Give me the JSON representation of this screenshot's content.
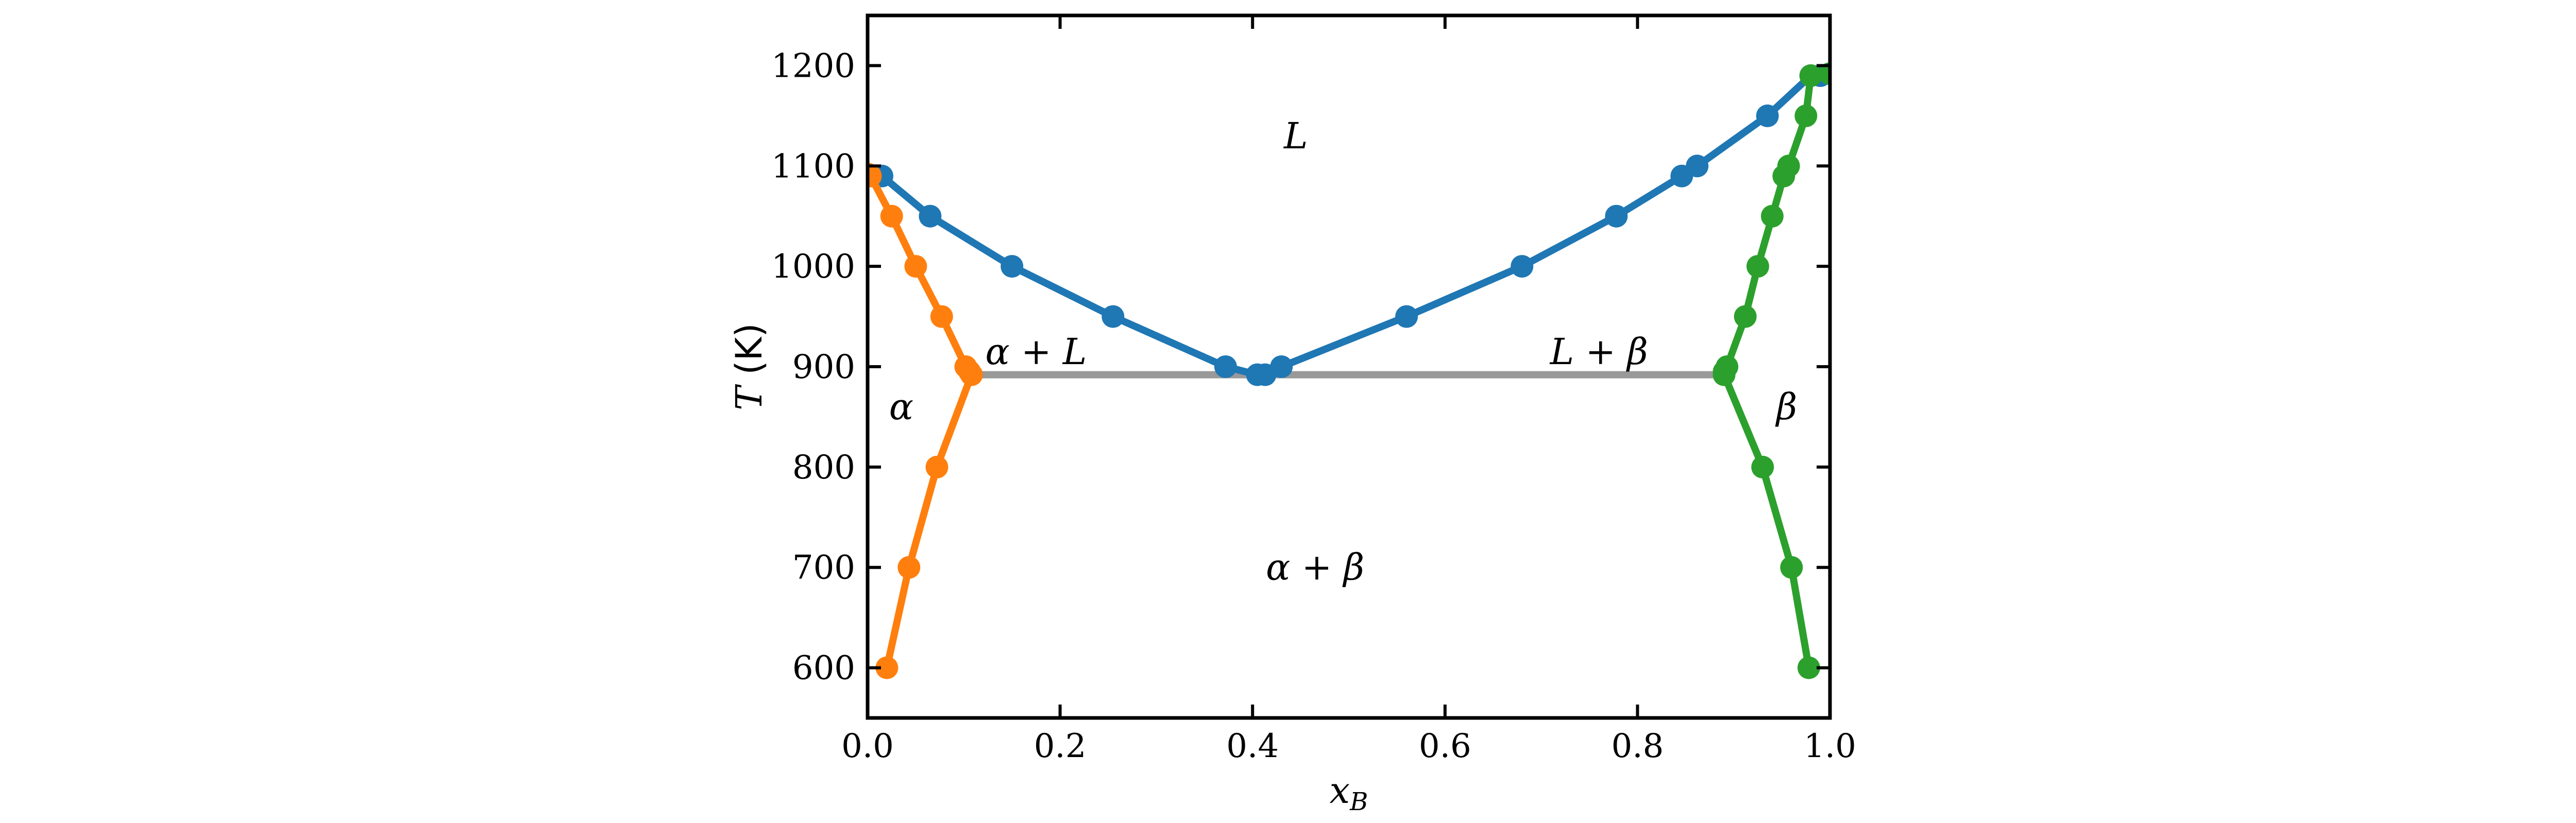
{
  "chart_data": {
    "type": "line",
    "xlabel": {
      "base": "x",
      "sub": "B"
    },
    "ylabel": {
      "var": "T",
      "unit": " (K)"
    },
    "xlim": [
      0.0,
      1.0
    ],
    "ylim": [
      550,
      1250
    ],
    "x_ticks": [
      0.0,
      0.2,
      0.4,
      0.6,
      0.8,
      1.0
    ],
    "x_tick_labels": [
      "0.0",
      "0.2",
      "0.4",
      "0.6",
      "0.8",
      "1.0"
    ],
    "y_ticks": [
      600,
      700,
      800,
      900,
      1000,
      1100,
      1200
    ],
    "y_tick_labels": [
      "600",
      "700",
      "800",
      "900",
      "1000",
      "1100",
      "1200"
    ],
    "grid": false,
    "series": [
      {
        "color": "#1f77b4",
        "x": [
          0.0,
          0.015,
          0.065,
          0.15,
          0.255,
          0.372,
          0.405,
          0.413,
          0.43,
          0.56,
          0.68,
          0.778,
          0.846,
          0.862,
          0.935,
          0.98,
          0.99,
          1.0
        ],
        "y": [
          1092,
          1090,
          1050,
          1000,
          950,
          900,
          892,
          892,
          900,
          950,
          1000,
          1050,
          1090,
          1100,
          1150,
          1190,
          1190,
          1192
        ]
      },
      {
        "color": "#ff7f0e",
        "x": [
          0.0,
          0.003,
          0.025,
          0.05,
          0.077,
          0.102,
          0.106,
          0.108,
          0.072,
          0.043,
          0.02
        ],
        "y": [
          1092,
          1090,
          1050,
          1000,
          950,
          900,
          895,
          892,
          800,
          700,
          600
        ]
      },
      {
        "color": "#2ca02c",
        "x": [
          1.0,
          0.98,
          0.975,
          0.957,
          0.952,
          0.94,
          0.925,
          0.912,
          0.893,
          0.89,
          0.89,
          0.93,
          0.96,
          0.978
        ],
        "y": [
          1192,
          1190,
          1150,
          1100,
          1090,
          1050,
          1000,
          950,
          900,
          895,
          892,
          800,
          700,
          600
        ]
      }
    ],
    "tie_line": {
      "x": [
        0.108,
        0.89
      ],
      "y": [
        892,
        892
      ],
      "color": "#999999"
    },
    "annotations": [
      {
        "text": "L",
        "x": 0.445,
        "y": 1130
      },
      {
        "text": "α + L",
        "x": 0.175,
        "y": 915
      },
      {
        "text": "L + β",
        "x": 0.76,
        "y": 915
      },
      {
        "text": "α",
        "x": 0.035,
        "y": 860
      },
      {
        "text": "β",
        "x": 0.955,
        "y": 860
      },
      {
        "text": "α + β",
        "x": 0.465,
        "y": 700
      }
    ]
  }
}
